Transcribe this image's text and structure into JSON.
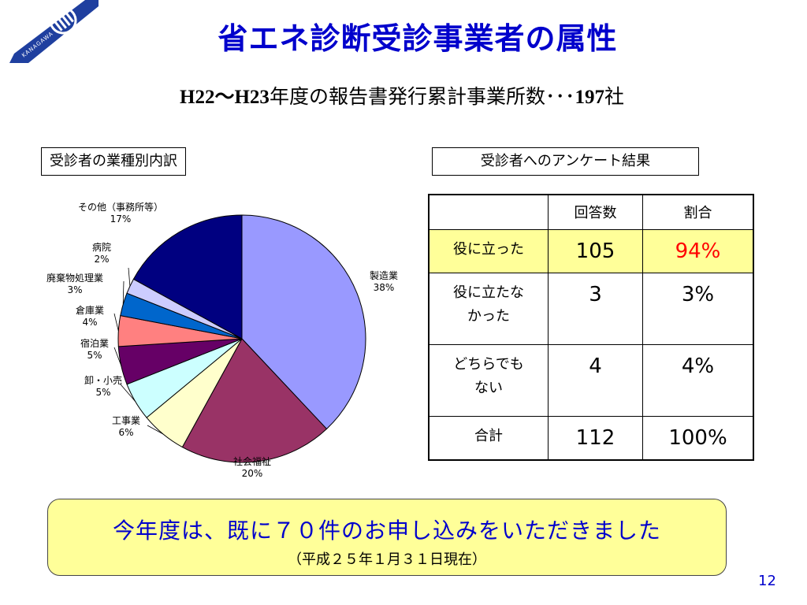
{
  "logo_text": "KANAGAWA",
  "title": "省エネ診断受診事業者の属性",
  "subtitle": {
    "part1": "H22～H23",
    "part2": "年度の報告書発行累計事業所数･･･",
    "part3": "197",
    "part4": "社"
  },
  "pie_section_label": "受診者の業種別内訳",
  "survey_section_label": "受診者へのアンケート結果",
  "chart_data": [
    {
      "type": "pie",
      "categories": [
        "製造業",
        "社会福祉",
        "工事業",
        "卸・小売",
        "宿泊業",
        "倉庫業",
        "廃棄物処理業",
        "病院",
        "その他（事務所等）"
      ],
      "values": [
        38,
        20,
        6,
        5,
        5,
        4,
        3,
        2,
        17
      ],
      "value_labels": [
        "38%",
        "20%",
        "6%",
        "5%",
        "5%",
        "4%",
        "3%",
        "2%",
        "17%"
      ],
      "colors": [
        "#9999ff",
        "#993366",
        "#ffffcc",
        "#ccffff",
        "#660066",
        "#ff8080",
        "#0066cc",
        "#ccccff",
        "#000080"
      ]
    },
    {
      "type": "table",
      "columns": [
        "",
        "回答数",
        "割合"
      ],
      "rows": [
        {
          "label": "役に立った",
          "count": "105",
          "ratio": "94%"
        },
        {
          "label": "役に立たなかった",
          "count": "3",
          "ratio": "3%"
        },
        {
          "label": "どちらでもない",
          "count": "4",
          "ratio": "4%"
        },
        {
          "label": "合計",
          "count": "112",
          "ratio": "100%"
        }
      ]
    }
  ],
  "survey_rows_display": [
    [
      "役に立った"
    ],
    [
      "役に立たな",
      "かった"
    ],
    [
      "どちらでも",
      "ない"
    ],
    [
      "合計"
    ]
  ],
  "notice": {
    "main": "今年度は、既に７０件のお申し込みをいただきました",
    "sub": "（平成２５年１月３１日現在）"
  },
  "page_number": "12",
  "colors": {
    "title": "#0000cc",
    "highlight_row": "#ffff99",
    "highlight_ratio": "#ff0000",
    "notice_bg": "#ffff99"
  }
}
